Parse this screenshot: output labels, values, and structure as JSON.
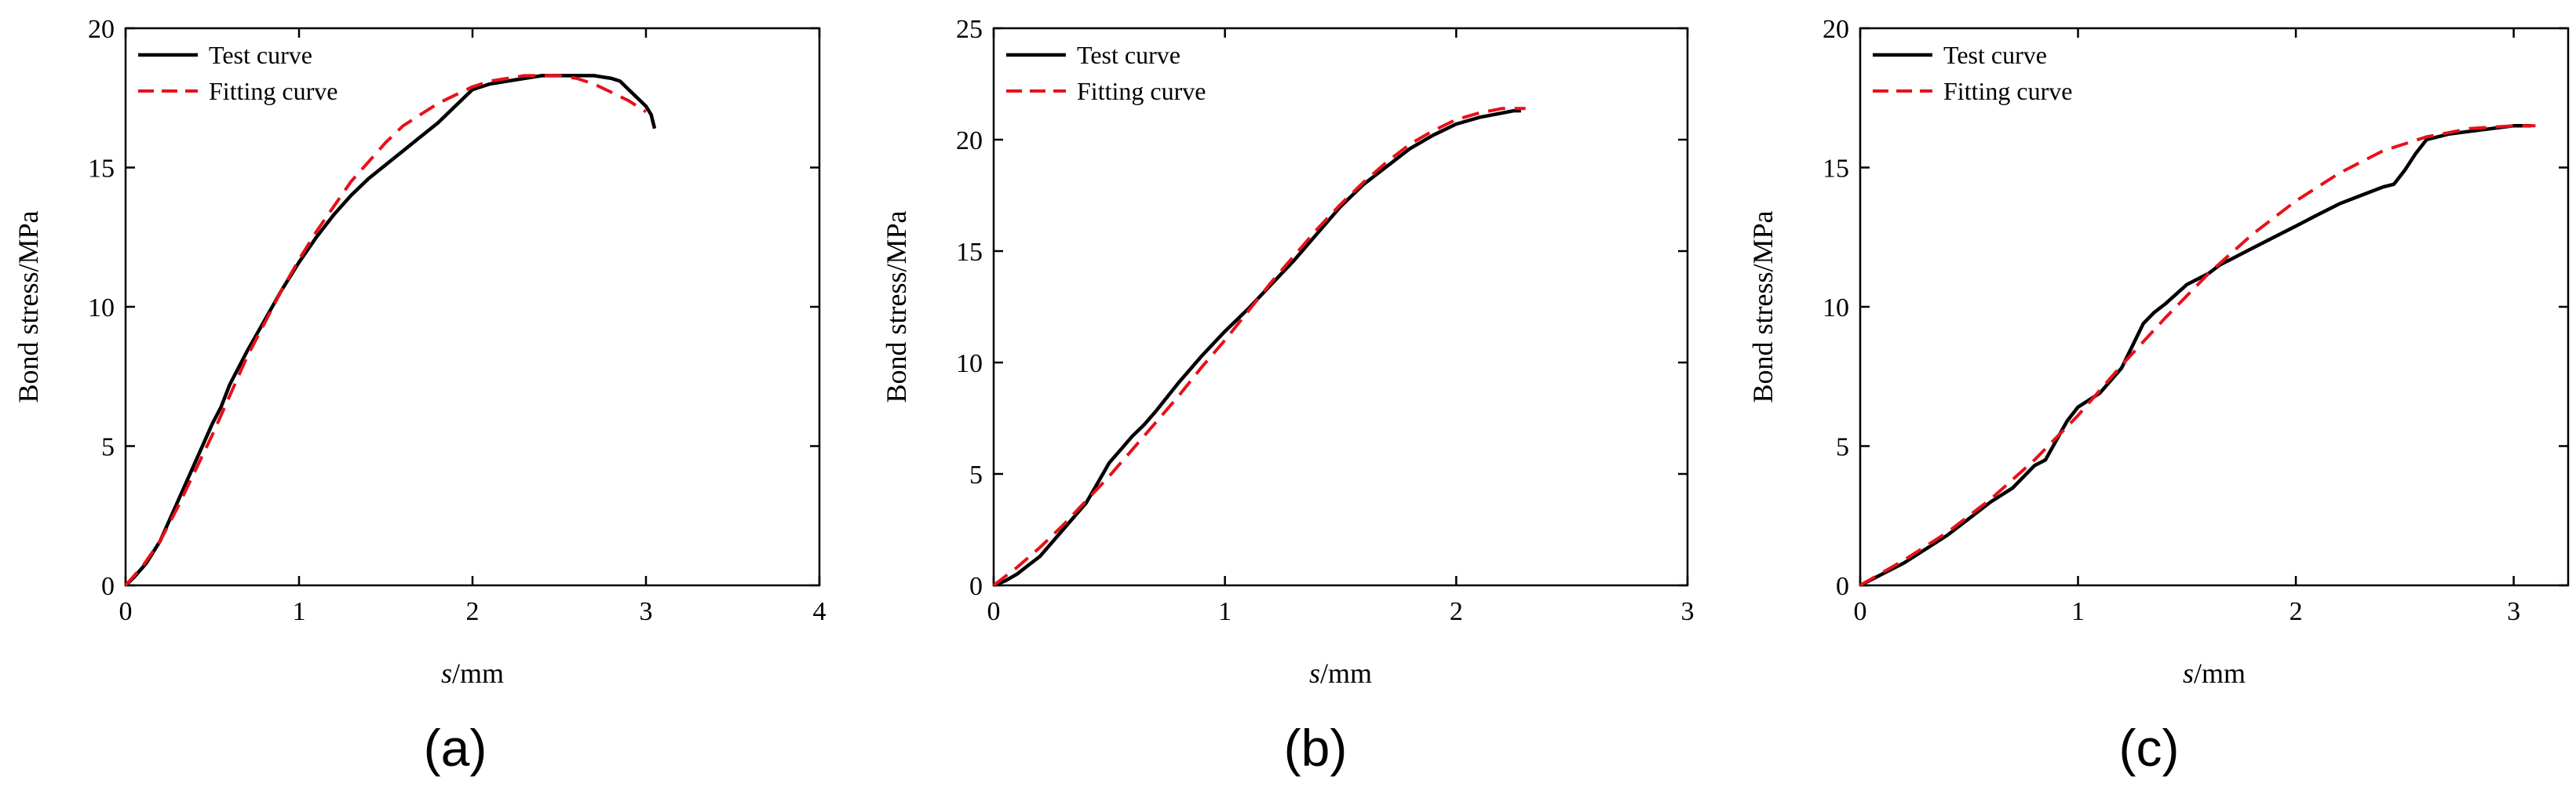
{
  "colors": {
    "test_curve": "#000000",
    "fitting_curve": "#e8101a",
    "axes": "#000000",
    "background": "#ffffff"
  },
  "chart_data": [
    {
      "type": "line",
      "panel_label": "(a)",
      "xlabel_italic": "s",
      "xlabel_unit": "/mm",
      "ylabel": "Bond stress/MPa",
      "xlim": [
        0,
        4
      ],
      "ylim": [
        0,
        20
      ],
      "xticks": [
        0,
        1,
        2,
        3,
        4
      ],
      "yticks": [
        0,
        5,
        10,
        15,
        20
      ],
      "grid": false,
      "legend_position": "top-left",
      "series": [
        {
          "name": "Test curve",
          "style": "solid",
          "x": [
            0,
            0.05,
            0.12,
            0.2,
            0.3,
            0.4,
            0.5,
            0.55,
            0.6,
            0.7,
            0.8,
            0.9,
            1.0,
            1.1,
            1.2,
            1.3,
            1.4,
            1.5,
            1.6,
            1.7,
            1.8,
            1.9,
            2.0,
            2.1,
            2.2,
            2.3,
            2.4,
            2.5,
            2.6,
            2.7,
            2.8,
            2.85,
            2.9,
            2.95,
            3.0,
            3.03,
            3.05
          ],
          "y": [
            0,
            0.3,
            0.8,
            1.6,
            3.0,
            4.4,
            5.8,
            6.4,
            7.2,
            8.4,
            9.5,
            10.6,
            11.6,
            12.5,
            13.3,
            14.0,
            14.6,
            15.1,
            15.6,
            16.1,
            16.6,
            17.2,
            17.8,
            18.0,
            18.1,
            18.2,
            18.3,
            18.3,
            18.3,
            18.3,
            18.2,
            18.1,
            17.8,
            17.5,
            17.2,
            16.9,
            16.4
          ]
        },
        {
          "name": "Fitting curve",
          "style": "dashed",
          "x": [
            0,
            0.1,
            0.2,
            0.3,
            0.4,
            0.5,
            0.6,
            0.7,
            0.8,
            0.9,
            1.0,
            1.1,
            1.2,
            1.3,
            1.4,
            1.5,
            1.6,
            1.7,
            1.8,
            1.9,
            2.0,
            2.1,
            2.2,
            2.3,
            2.4,
            2.5,
            2.6,
            2.7,
            2.8,
            2.9,
            3.0
          ],
          "y": [
            0,
            0.7,
            1.6,
            2.8,
            4.1,
            5.4,
            6.8,
            8.2,
            9.4,
            10.6,
            11.7,
            12.7,
            13.6,
            14.5,
            15.2,
            15.9,
            16.5,
            16.9,
            17.3,
            17.6,
            17.9,
            18.1,
            18.2,
            18.3,
            18.3,
            18.3,
            18.2,
            18.0,
            17.7,
            17.4,
            17.0
          ]
        }
      ]
    },
    {
      "type": "line",
      "panel_label": "(b)",
      "xlabel_italic": "s",
      "xlabel_unit": "/mm",
      "ylabel": "Bond stress/MPa",
      "xlim": [
        0,
        3
      ],
      "ylim": [
        0,
        25
      ],
      "xticks": [
        0,
        1,
        2,
        3
      ],
      "yticks": [
        0,
        5,
        10,
        15,
        20,
        25
      ],
      "grid": false,
      "legend_position": "top-left",
      "series": [
        {
          "name": "Test curve",
          "style": "solid",
          "x": [
            0,
            0.05,
            0.1,
            0.15,
            0.2,
            0.25,
            0.3,
            0.35,
            0.4,
            0.45,
            0.5,
            0.55,
            0.6,
            0.65,
            0.7,
            0.8,
            0.9,
            1.0,
            1.1,
            1.2,
            1.3,
            1.4,
            1.5,
            1.6,
            1.7,
            1.8,
            1.9,
            2.0,
            2.1,
            2.2,
            2.25,
            2.28
          ],
          "y": [
            0,
            0.2,
            0.5,
            0.9,
            1.3,
            1.9,
            2.5,
            3.1,
            3.7,
            4.6,
            5.5,
            6.1,
            6.7,
            7.2,
            7.8,
            9.1,
            10.3,
            11.4,
            12.4,
            13.5,
            14.6,
            15.8,
            17.0,
            18.0,
            18.8,
            19.6,
            20.2,
            20.7,
            21.0,
            21.2,
            21.3,
            21.3
          ]
        },
        {
          "name": "Fitting curve",
          "style": "dashed",
          "x": [
            0,
            0.1,
            0.2,
            0.3,
            0.4,
            0.5,
            0.6,
            0.7,
            0.8,
            0.9,
            1.0,
            1.1,
            1.2,
            1.3,
            1.4,
            1.5,
            1.6,
            1.7,
            1.8,
            1.9,
            2.0,
            2.1,
            2.2,
            2.3
          ],
          "y": [
            0,
            0.8,
            1.7,
            2.7,
            3.8,
            4.9,
            6.1,
            7.3,
            8.5,
            9.8,
            11.0,
            12.3,
            13.6,
            14.8,
            16.0,
            17.1,
            18.1,
            19.0,
            19.8,
            20.4,
            20.9,
            21.2,
            21.4,
            21.4
          ]
        }
      ]
    },
    {
      "type": "line",
      "panel_label": "(c)",
      "xlabel_italic": "s",
      "xlabel_unit": "/mm",
      "ylabel": "Bond stress/MPa",
      "xlim": [
        0,
        3.25
      ],
      "ylim": [
        0,
        20
      ],
      "xticks": [
        0,
        1,
        2,
        3
      ],
      "yticks": [
        0,
        5,
        10,
        15,
        20
      ],
      "grid": false,
      "legend_position": "top-left",
      "series": [
        {
          "name": "Test curve",
          "style": "solid",
          "x": [
            0,
            0.1,
            0.2,
            0.3,
            0.4,
            0.5,
            0.6,
            0.7,
            0.8,
            0.85,
            0.9,
            0.95,
            1.0,
            1.1,
            1.2,
            1.3,
            1.35,
            1.4,
            1.5,
            1.6,
            1.65,
            1.7,
            1.8,
            1.9,
            2.0,
            2.1,
            2.2,
            2.3,
            2.4,
            2.45,
            2.5,
            2.55,
            2.6,
            2.7,
            2.8,
            2.9,
            3.0,
            3.08
          ],
          "y": [
            0,
            0.4,
            0.8,
            1.3,
            1.8,
            2.4,
            3.0,
            3.5,
            4.3,
            4.5,
            5.2,
            5.9,
            6.4,
            6.9,
            7.8,
            9.4,
            9.8,
            10.1,
            10.8,
            11.2,
            11.5,
            11.7,
            12.1,
            12.5,
            12.9,
            13.3,
            13.7,
            14.0,
            14.3,
            14.4,
            14.9,
            15.5,
            16.0,
            16.2,
            16.3,
            16.4,
            16.5,
            16.5
          ]
        },
        {
          "name": "Fitting curve",
          "style": "dashed",
          "x": [
            0,
            0.2,
            0.4,
            0.6,
            0.8,
            1.0,
            1.2,
            1.4,
            1.6,
            1.8,
            2.0,
            2.2,
            2.4,
            2.6,
            2.8,
            3.0,
            3.1
          ],
          "y": [
            0,
            0.9,
            1.9,
            3.1,
            4.5,
            6.1,
            7.9,
            9.6,
            11.2,
            12.6,
            13.8,
            14.8,
            15.6,
            16.1,
            16.4,
            16.5,
            16.5
          ]
        }
      ]
    }
  ]
}
